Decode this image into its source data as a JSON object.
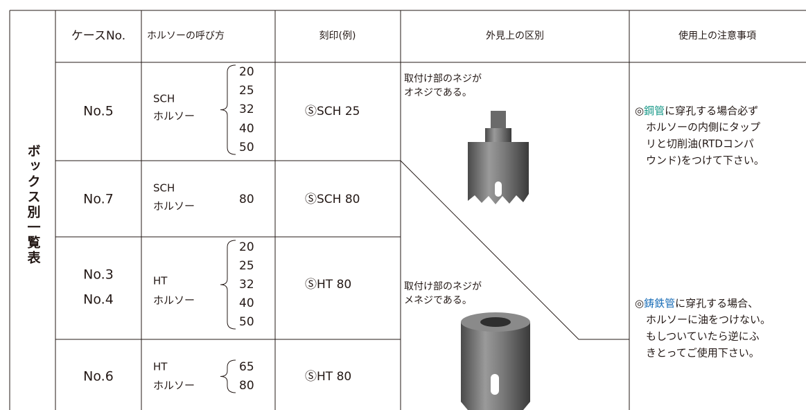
{
  "title": "ボックス別一覧表",
  "header": [
    "ケースNo.",
    "ホルソーの呼び方",
    "刻印(例)",
    "外見上の区別",
    "使用上の注意事項"
  ],
  "rows": [
    {
      "case": [
        "No.5"
      ],
      "name": [
        "SCH",
        "ホルソー"
      ],
      "sizes": [
        "20",
        "25",
        "32",
        "40",
        "50"
      ],
      "stamp": "ⓈSCH 25"
    },
    {
      "case": [
        "No.7"
      ],
      "name": [
        "SCH",
        "ホルソー"
      ],
      "sizes": [
        "80"
      ],
      "stamp": "ⓈSCH 80"
    },
    {
      "case": [
        "No.3",
        "No.4"
      ],
      "name": [
        "HT",
        "ホルソー"
      ],
      "sizes": [
        "20",
        "25",
        "32",
        "40",
        "50"
      ],
      "stamp": "ⓈHT 80"
    },
    {
      "case": [
        "No.6"
      ],
      "name": [
        "HT",
        "ホルソー"
      ],
      "sizes": [
        "65",
        "80"
      ],
      "stamp": "ⓈHT 80"
    }
  ],
  "appearance": [
    [
      "取付け部のネジが",
      "オネジである。"
    ],
    [
      "取付け部のネジが",
      "メネジである。"
    ]
  ],
  "notes": [
    {
      "mark": "◎",
      "highlight": "鋼管",
      "color": "#1a9a8a",
      "lines": [
        "に穿孔する場合必ず",
        "ホルソーの内側にタップ",
        "リと切削油(RTDコンパ",
        "ウンド)をつけて下さい。"
      ]
    },
    {
      "mark": "◎",
      "highlight": "鋳鉄管",
      "color": "#1c6fb8",
      "lines": [
        "に穿孔する場合、",
        "ホルソーに油をつけない。",
        "もしついていたら逆にふ",
        "きとってご使用下さい。"
      ]
    }
  ]
}
